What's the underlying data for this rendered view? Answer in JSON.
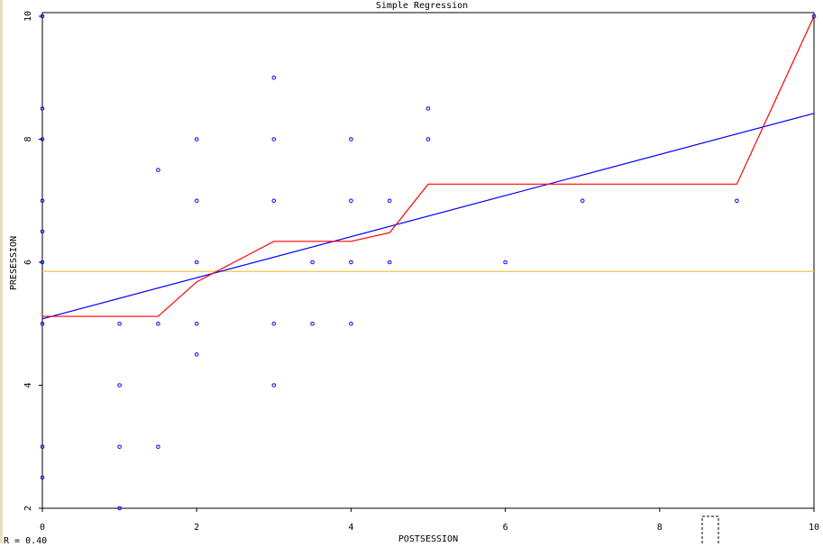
{
  "chart_data": {
    "type": "scatter",
    "title": "Simple Regression",
    "x_label": "POSTSESSION",
    "y_label": "PRESESSION",
    "annotation": "R = 0.40",
    "xlim": [
      0,
      10
    ],
    "ylim": [
      2,
      10
    ],
    "xticks": [
      0,
      2,
      4,
      6,
      8,
      10
    ],
    "yticks": [
      2,
      4,
      6,
      8,
      10
    ],
    "points": {
      "color": "#0000ff",
      "x": [
        0,
        0,
        0,
        0,
        0,
        0,
        0,
        0,
        0,
        1,
        1,
        1,
        1,
        1.5,
        1.5,
        1.5,
        2,
        2,
        2,
        2,
        2,
        3,
        3,
        3,
        3,
        3,
        3.5,
        3.5,
        4,
        4,
        4,
        4,
        4.5,
        4.5,
        5,
        5,
        6,
        7,
        9,
        10
      ],
      "y": [
        10,
        8.5,
        8,
        7,
        6.5,
        6,
        5,
        3,
        2.5,
        5,
        4,
        3,
        2,
        7.5,
        5,
        3,
        8,
        7,
        6,
        5,
        4.5,
        9,
        8,
        7,
        5,
        4,
        6,
        5,
        8,
        7,
        6,
        5,
        7,
        6,
        8.5,
        8,
        6,
        7,
        7,
        10
      ]
    },
    "series": [
      {
        "color": "#f5c242",
        "x": [
          0,
          10
        ],
        "values": [
          5.85,
          5.85
        ]
      },
      {
        "color": "#0000ff",
        "x": [
          0,
          10
        ],
        "values": [
          5.08,
          8.42
        ]
      },
      {
        "color": "#ff0000",
        "x": [
          0,
          1.5,
          2,
          3,
          4,
          4.5,
          5,
          9,
          10
        ],
        "values": [
          5.12,
          5.12,
          5.68,
          6.34,
          6.34,
          6.48,
          7.27,
          7.27,
          10
        ]
      }
    ]
  }
}
